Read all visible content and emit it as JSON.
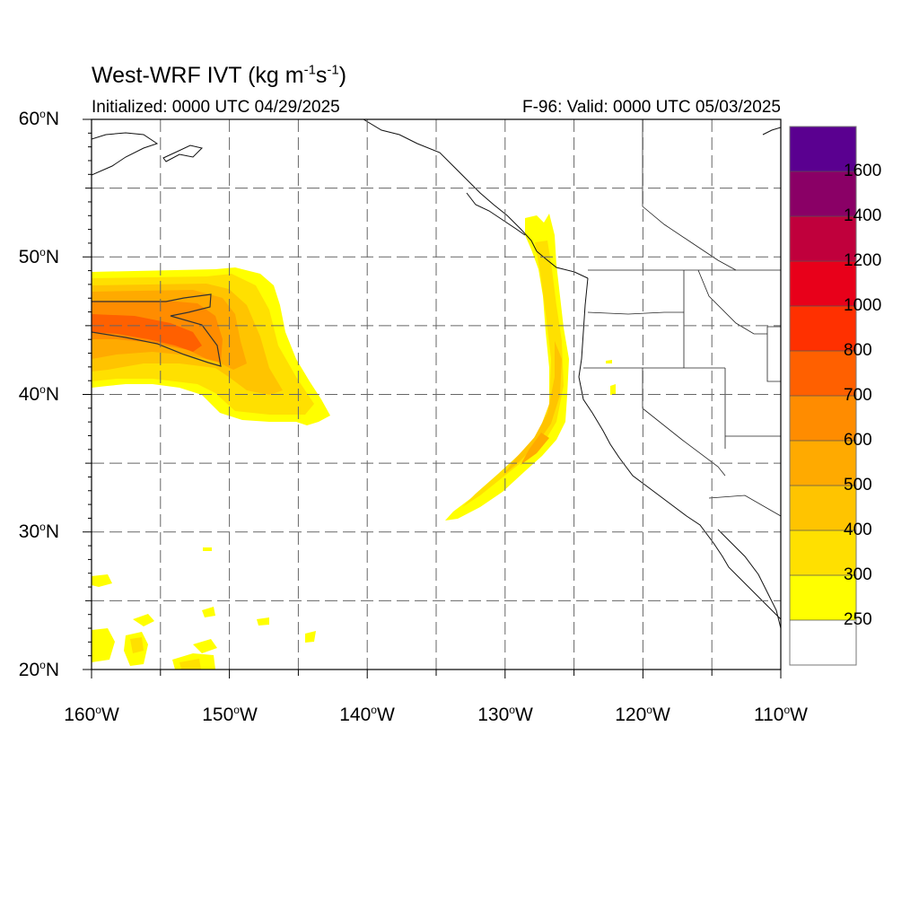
{
  "title": {
    "main": "West-WRF IVT (kg m",
    "unit_exp1": "-1",
    "unit_mid": "s",
    "unit_exp2": "-1",
    "unit_close": ")"
  },
  "subtitle_left": "Initialized: 0000 UTC 04/29/2025",
  "subtitle_right": "F-96: Valid: 0000 UTC 05/03/2025",
  "y_ticks": [
    {
      "label": "60",
      "unit": "N"
    },
    {
      "label": "50",
      "unit": "N"
    },
    {
      "label": "40",
      "unit": "N"
    },
    {
      "label": "30",
      "unit": "N"
    },
    {
      "label": "20",
      "unit": "N"
    }
  ],
  "x_ticks": [
    {
      "label": "160",
      "unit": "W"
    },
    {
      "label": "150",
      "unit": "W"
    },
    {
      "label": "140",
      "unit": "W"
    },
    {
      "label": "130",
      "unit": "W"
    },
    {
      "label": "120",
      "unit": "W"
    },
    {
      "label": "110",
      "unit": "W"
    }
  ],
  "colorbar": {
    "labels": [
      "1600",
      "1400",
      "1200",
      "1000",
      "800",
      "700",
      "600",
      "500",
      "400",
      "300",
      "250"
    ],
    "colors": [
      "#5a0090",
      "#8a0066",
      "#c0003c",
      "#e8001a",
      "#ff3000",
      "#ff6000",
      "#ff8c00",
      "#ffaa00",
      "#ffc400",
      "#ffe000",
      "#ffff00",
      "#ffffff"
    ]
  },
  "map": {
    "lon_range": [
      -160,
      -110
    ],
    "lat_range": [
      20,
      60
    ],
    "grid_lon": [
      -155,
      -150,
      -145,
      -140,
      -135,
      -130,
      -125,
      -120,
      -115
    ],
    "grid_lat": [
      25,
      30,
      35,
      40,
      45,
      50,
      55
    ],
    "colors": {
      "ivt_250": "#ffff00",
      "ivt_300": "#ffe000",
      "ivt_400": "#ffc400",
      "ivt_500": "#ffaa00",
      "ivt_600": "#ff8c00",
      "ivt_700": "#ff6000"
    }
  }
}
